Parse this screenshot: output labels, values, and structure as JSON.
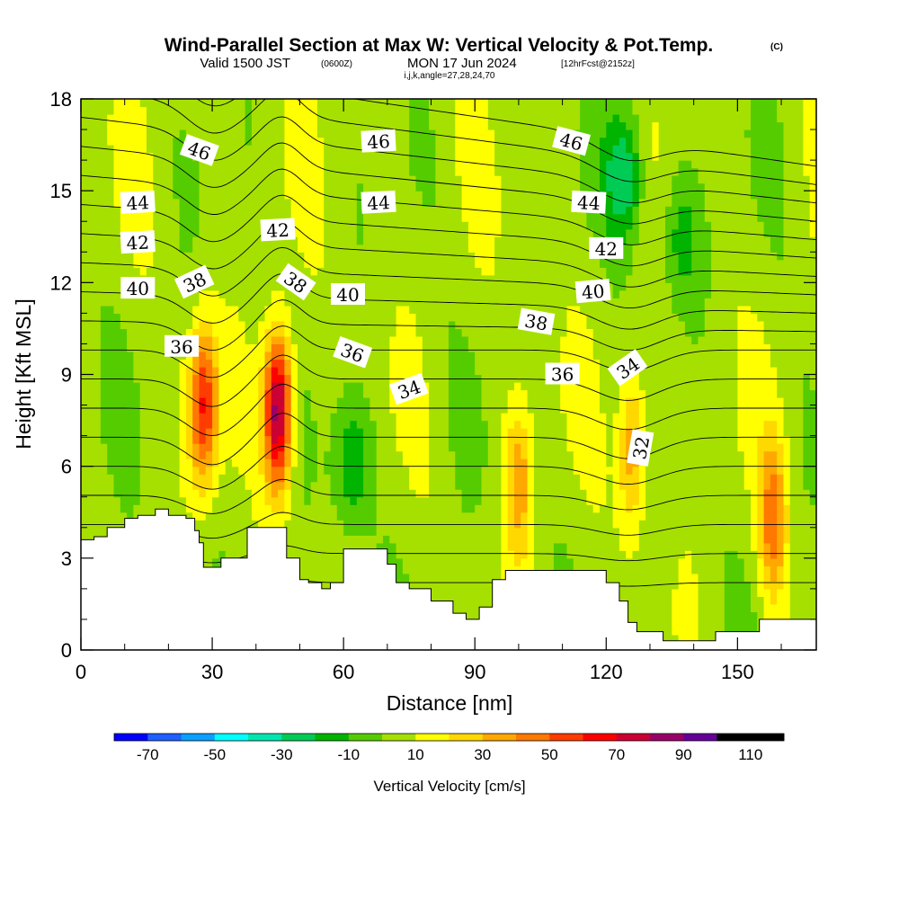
{
  "header": {
    "title": "Wind-Parallel Section at Max W: Vertical Velocity & Pot.Temp.",
    "copyright": "(C)",
    "valid_prefix": "Valid 1500 JST",
    "valid_utc": "(0600Z)",
    "valid_date": "MON 17 Jun 2024",
    "forecast": "[12hrFcst@2152z]",
    "indices": "i,j,k,angle=27,28,24,70"
  },
  "colors": {
    "bins": [
      "#0000ff",
      "#1f5fff",
      "#0aa0ff",
      "#00ffff",
      "#00e6b0",
      "#00cc55",
      "#00b400",
      "#55cc00",
      "#a6e000",
      "#ffff00",
      "#ffd800",
      "#ffa800",
      "#ff7800",
      "#ff3c00",
      "#ff0000",
      "#cc0033",
      "#990066",
      "#660099"
    ],
    "terrain": "#ffffff",
    "contour": "#000000"
  },
  "chart_data": {
    "type": "heatmap",
    "xlabel": "Distance [nm]",
    "ylabel": "Height [Kft MSL]",
    "xlim": [
      0,
      168
    ],
    "ylim": [
      0,
      18
    ],
    "xticks": [
      0,
      30,
      60,
      90,
      120,
      150
    ],
    "yticks": [
      0,
      3,
      6,
      9,
      12,
      15,
      18
    ],
    "field": "Vertical Velocity",
    "colorbar": {
      "label": "Vertical Velocity [cm/s]",
      "levels": [
        -80,
        -70,
        -60,
        -50,
        -40,
        -30,
        -20,
        -10,
        0,
        10,
        20,
        30,
        40,
        50,
        60,
        70,
        80,
        90,
        100,
        110,
        120
      ],
      "tick_labels": [
        -70,
        -50,
        -30,
        -10,
        10,
        30,
        50,
        70,
        90,
        110
      ]
    },
    "updraft_cores": [
      {
        "x": 28,
        "y": 8.0,
        "peak": 55
      },
      {
        "x": 45,
        "y": 7.8,
        "peak": 85
      },
      {
        "x": 100,
        "y": 5.5,
        "peak": 30
      },
      {
        "x": 126,
        "y": 6.5,
        "peak": 35
      },
      {
        "x": 158,
        "y": 4.2,
        "peak": 40
      }
    ],
    "downdraft_cores": [
      {
        "x": 62,
        "y": 6.0,
        "peak": -25
      },
      {
        "x": 124,
        "y": 15.5,
        "peak": -35
      },
      {
        "x": 137,
        "y": 13.5,
        "peak": -20
      }
    ],
    "terrain_profile": {
      "x": [
        0,
        3,
        6,
        10,
        13,
        17,
        20,
        24,
        26,
        27,
        28,
        30,
        32,
        35,
        38,
        40,
        45,
        47,
        50,
        52,
        55,
        57,
        60,
        65,
        70,
        72,
        75,
        80,
        85,
        88,
        91,
        94,
        97,
        100,
        105,
        110,
        115,
        120,
        123,
        125,
        127,
        130,
        133,
        136,
        140,
        145,
        150,
        155,
        160,
        165,
        168
      ],
      "y": [
        3.6,
        3.7,
        4.0,
        4.3,
        4.4,
        4.6,
        4.4,
        4.3,
        3.9,
        3.5,
        2.7,
        2.7,
        3.0,
        3.0,
        4.0,
        4.0,
        4.0,
        3.0,
        2.3,
        2.2,
        2.0,
        2.2,
        3.3,
        3.3,
        2.8,
        2.2,
        2.0,
        1.6,
        1.2,
        1.0,
        1.4,
        2.3,
        2.6,
        2.6,
        2.6,
        2.6,
        2.6,
        2.2,
        1.6,
        0.9,
        0.6,
        0.6,
        0.3,
        0.3,
        0.3,
        0.6,
        0.6,
        1.0,
        1.0,
        1.0,
        1.0
      ]
    },
    "potential_temperature": {
      "contour_levels": [
        31,
        32,
        33,
        34,
        35,
        36,
        37,
        38,
        39,
        40,
        41,
        42,
        43,
        44,
        45,
        46,
        47,
        48,
        49
      ],
      "labels": [
        {
          "text": "46",
          "x": 27,
          "y": 16.3,
          "angle": 20
        },
        {
          "text": "46",
          "x": 68,
          "y": 16.6,
          "angle": -3
        },
        {
          "text": "46",
          "x": 112,
          "y": 16.6,
          "angle": 15
        },
        {
          "text": "44",
          "x": 13,
          "y": 14.6,
          "angle": -3
        },
        {
          "text": "44",
          "x": 68,
          "y": 14.6,
          "angle": -3
        },
        {
          "text": "44",
          "x": 116,
          "y": 14.6,
          "angle": 3
        },
        {
          "text": "42",
          "x": 13,
          "y": 13.3,
          "angle": -3
        },
        {
          "text": "42",
          "x": 45,
          "y": 13.7,
          "angle": -3
        },
        {
          "text": "42",
          "x": 120,
          "y": 13.1,
          "angle": 0
        },
        {
          "text": "40",
          "x": 13,
          "y": 11.8,
          "angle": 0
        },
        {
          "text": "40",
          "x": 61,
          "y": 11.6,
          "angle": 0
        },
        {
          "text": "40",
          "x": 117,
          "y": 11.7,
          "angle": -5
        },
        {
          "text": "38",
          "x": 26,
          "y": 12.0,
          "angle": -25
        },
        {
          "text": "38",
          "x": 49,
          "y": 12.0,
          "angle": 35
        },
        {
          "text": "38",
          "x": 104,
          "y": 10.7,
          "angle": 10
        },
        {
          "text": "36",
          "x": 23,
          "y": 9.9,
          "angle": 0
        },
        {
          "text": "36",
          "x": 62,
          "y": 9.7,
          "angle": 20
        },
        {
          "text": "36",
          "x": 110,
          "y": 9.0,
          "angle": 0
        },
        {
          "text": "34",
          "x": 75,
          "y": 8.5,
          "angle": -20
        },
        {
          "text": "34",
          "x": 125,
          "y": 9.2,
          "angle": -35
        },
        {
          "text": "32",
          "x": 128,
          "y": 6.6,
          "angle": -80
        }
      ]
    }
  }
}
